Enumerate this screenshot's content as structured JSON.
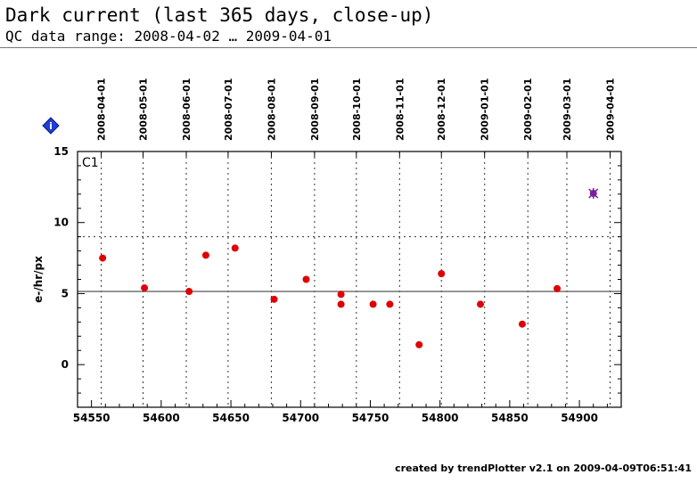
{
  "header": {
    "title": "Dark current (last 365 days, close-up)",
    "subtitle": "QC data range: 2008-04-02 … 2009-04-01"
  },
  "footer": {
    "text": "created by trendPlotter v2.1 on 2009-04-09T06:51:41"
  },
  "info_icon": {
    "symbol": "i",
    "name": "info-diamond-icon",
    "color": "#1f3fd6"
  },
  "chart_data": {
    "type": "scatter",
    "title": "",
    "xlabel": "",
    "ylabel": "e-/hr/px",
    "panel_label": "C1",
    "xlim": [
      54540,
      54930
    ],
    "ylim": [
      -3,
      15
    ],
    "x_ticks": [
      54550,
      54600,
      54650,
      54700,
      54750,
      54800,
      54850,
      54900
    ],
    "y_ticks": [
      0,
      5,
      10,
      15
    ],
    "date_ticks": [
      {
        "label": "2008-04-01",
        "mjd": 54557
      },
      {
        "label": "2008-05-01",
        "mjd": 54587
      },
      {
        "label": "2008-06-01",
        "mjd": 54618
      },
      {
        "label": "2008-07-01",
        "mjd": 54648
      },
      {
        "label": "2008-08-01",
        "mjd": 54679
      },
      {
        "label": "2008-09-01",
        "mjd": 54710
      },
      {
        "label": "2008-10-01",
        "mjd": 54740
      },
      {
        "label": "2008-11-01",
        "mjd": 54771
      },
      {
        "label": "2008-12-01",
        "mjd": 54801
      },
      {
        "label": "2009-01-01",
        "mjd": 54832
      },
      {
        "label": "2009-02-01",
        "mjd": 54863
      },
      {
        "label": "2009-03-01",
        "mjd": 54891
      },
      {
        "label": "2009-04-01",
        "mjd": 54922
      }
    ],
    "reference_line": 5.15,
    "threshold_line": 9.0,
    "grid": true,
    "point_color": "#e00000",
    "latest_color": "#7a1fa0",
    "points": [
      {
        "x": 54558,
        "y": 7.5
      },
      {
        "x": 54588,
        "y": 5.4
      },
      {
        "x": 54620,
        "y": 5.15
      },
      {
        "x": 54632,
        "y": 7.7
      },
      {
        "x": 54653,
        "y": 8.2
      },
      {
        "x": 54681,
        "y": 4.6
      },
      {
        "x": 54704,
        "y": 6.0
      },
      {
        "x": 54729,
        "y": 4.95
      },
      {
        "x": 54729,
        "y": 4.25
      },
      {
        "x": 54752,
        "y": 4.25
      },
      {
        "x": 54764,
        "y": 4.25
      },
      {
        "x": 54785,
        "y": 1.4
      },
      {
        "x": 54801,
        "y": 6.4
      },
      {
        "x": 54829,
        "y": 4.25
      },
      {
        "x": 54859,
        "y": 2.85
      },
      {
        "x": 54884,
        "y": 5.35
      }
    ],
    "latest_point": {
      "x": 54910,
      "y": 12.05
    }
  }
}
